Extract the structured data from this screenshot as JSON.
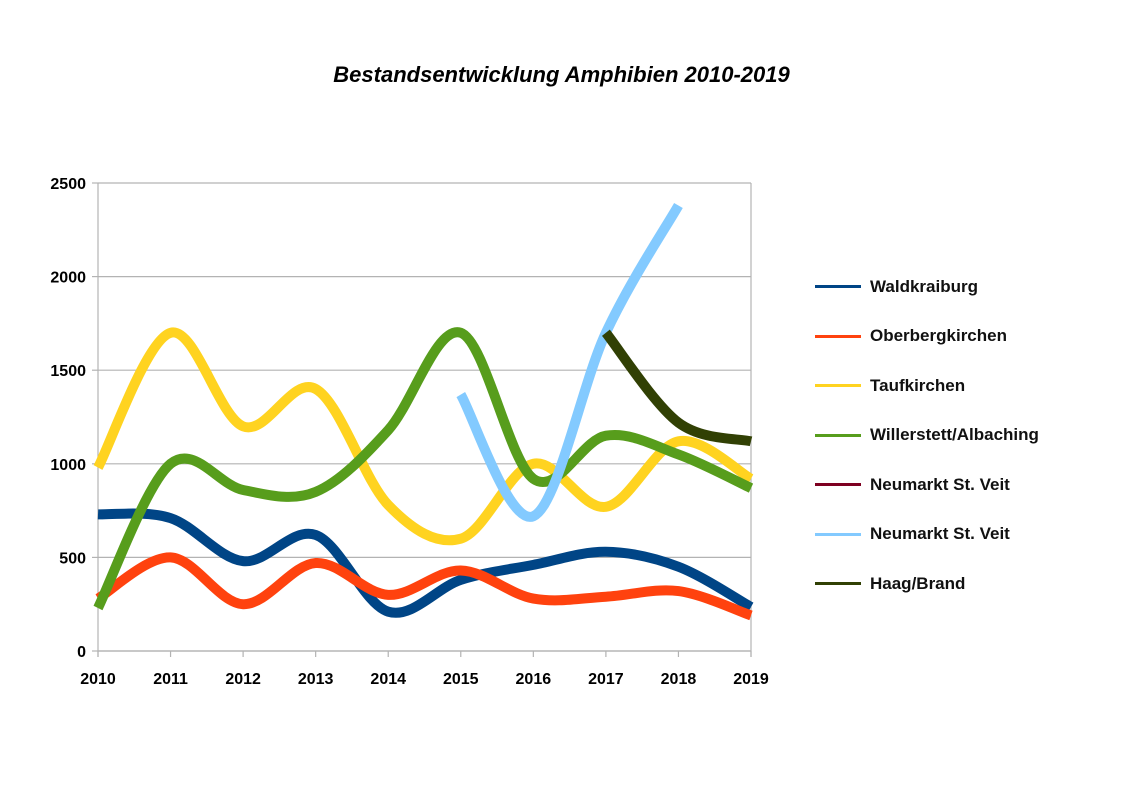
{
  "chart_data": {
    "type": "line",
    "title": "Bestandsentwicklung Amphibien 2010-2019",
    "xlabel": "",
    "ylabel": "",
    "x": [
      "2010",
      "2011",
      "2012",
      "2013",
      "2014",
      "2015",
      "2016",
      "2017",
      "2018",
      "2019"
    ],
    "ylim": [
      0,
      2500
    ],
    "yticks": [
      "0",
      "500",
      "1000",
      "1500",
      "2000",
      "2500"
    ],
    "ytick_values": [
      0,
      500,
      1000,
      1500,
      2000,
      2500
    ],
    "grid": true,
    "smooth": true,
    "legend_position": "right",
    "series": [
      {
        "name": "Waldkraiburg",
        "color": "#004586",
        "values": [
          730,
          710,
          480,
          620,
          210,
          380,
          460,
          530,
          450,
          235
        ]
      },
      {
        "name": "Oberbergkirchen",
        "color": "#ff420e",
        "values": [
          280,
          500,
          250,
          470,
          300,
          430,
          280,
          290,
          320,
          190
        ]
      },
      {
        "name": "Taufkirchen",
        "color": "#ffd320",
        "values": [
          980,
          1700,
          1200,
          1400,
          780,
          600,
          1000,
          770,
          1120,
          920
        ]
      },
      {
        "name": "Willerstett/Albaching",
        "color": "#579d1c",
        "values": [
          230,
          1000,
          860,
          850,
          1180,
          1700,
          920,
          1150,
          1050,
          870
        ]
      },
      {
        "name": "Neumarkt St. Veit",
        "color": "#7e0021",
        "values": [
          null,
          null,
          null,
          null,
          null,
          null,
          null,
          null,
          null,
          null
        ]
      },
      {
        "name": "Neumarkt St. Veit",
        "color": "#83caff",
        "values": [
          null,
          null,
          null,
          null,
          null,
          1370,
          720,
          1700,
          2380,
          null
        ]
      },
      {
        "name": "Haag/Brand",
        "color": "#314004",
        "values": [
          null,
          null,
          null,
          null,
          null,
          null,
          null,
          1700,
          1220,
          1120
        ]
      }
    ]
  }
}
